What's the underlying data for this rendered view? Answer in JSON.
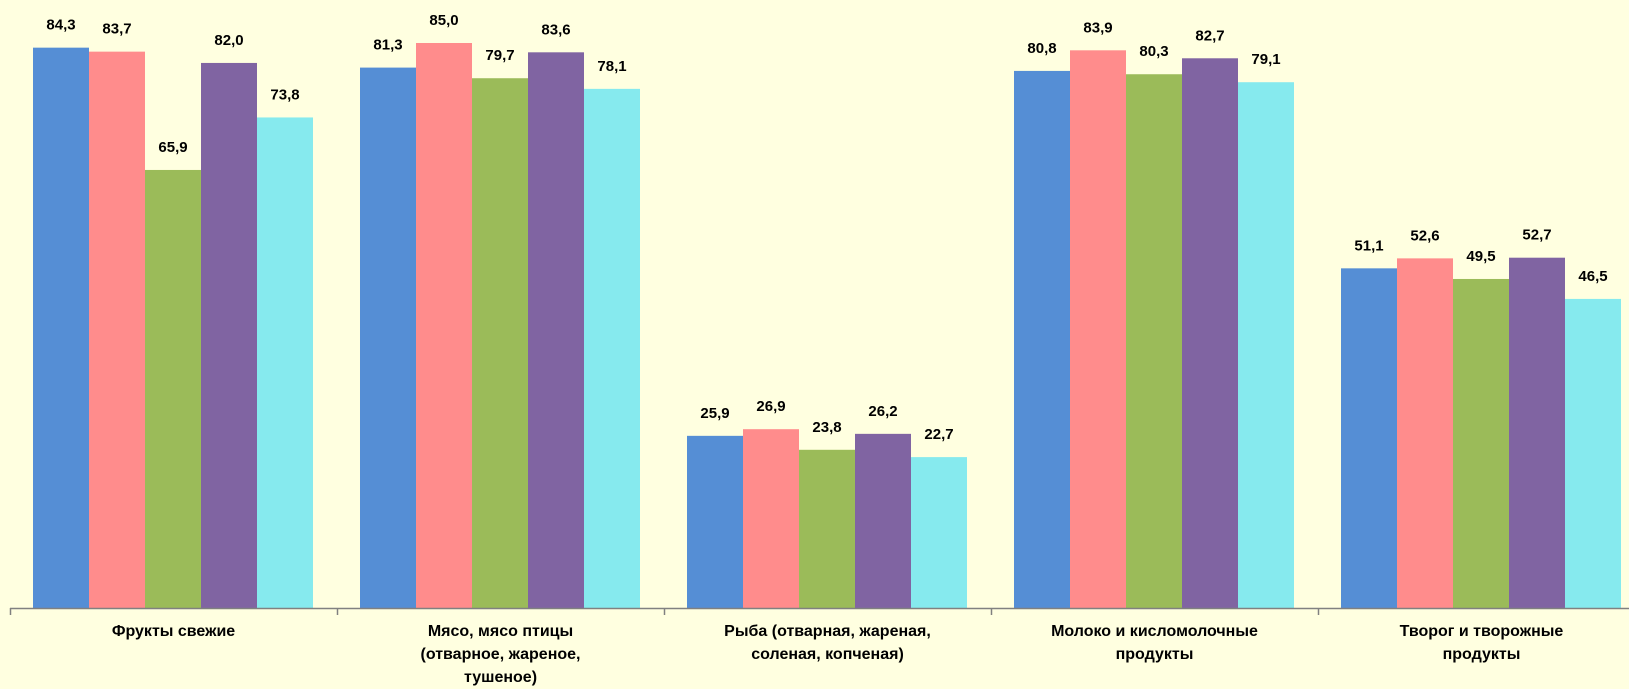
{
  "chart_data": {
    "type": "bar",
    "categories": [
      "Фрукты свежие",
      "Мясо, мясо птицы (отварное, жареное, тушеное)",
      "Рыба (отварная, жареная, соленая, копченая)",
      "Молоко и кисломолочные продукты",
      "Творог и творожные продукты"
    ],
    "series": [
      {
        "values": [
          84.3,
          81.3,
          25.9,
          80.8,
          51.1
        ],
        "color": "#558ED5"
      },
      {
        "values": [
          83.7,
          85.0,
          26.9,
          83.9,
          52.6
        ],
        "color": "#FF8C8C"
      },
      {
        "values": [
          65.9,
          79.7,
          23.8,
          80.3,
          49.5
        ],
        "color": "#9BBB59"
      },
      {
        "values": [
          82.0,
          83.6,
          26.2,
          82.7,
          52.7
        ],
        "color": "#8064A2"
      },
      {
        "values": [
          73.8,
          78.1,
          22.7,
          79.1,
          46.5
        ],
        "color": "#86EAEE"
      }
    ],
    "data_labels": [
      [
        "84,3",
        "81,3",
        "25,9",
        "80,8",
        "51,1"
      ],
      [
        "83,7",
        "85,0",
        "26,9",
        "83,9",
        "52,6"
      ],
      [
        "65,9",
        "79,7",
        "23,8",
        "80,3",
        "49,5"
      ],
      [
        "82,0",
        "83,6",
        "26,2",
        "82,7",
        "52,7"
      ],
      [
        "73,8",
        "78,1",
        "22,7",
        "79,1",
        "46,5"
      ]
    ],
    "title": "",
    "xlabel": "",
    "ylabel": "",
    "ylim": [
      0,
      85
    ],
    "grid": false,
    "legend": "none",
    "background": "#FFFFE0",
    "axis_color": "#808080"
  }
}
